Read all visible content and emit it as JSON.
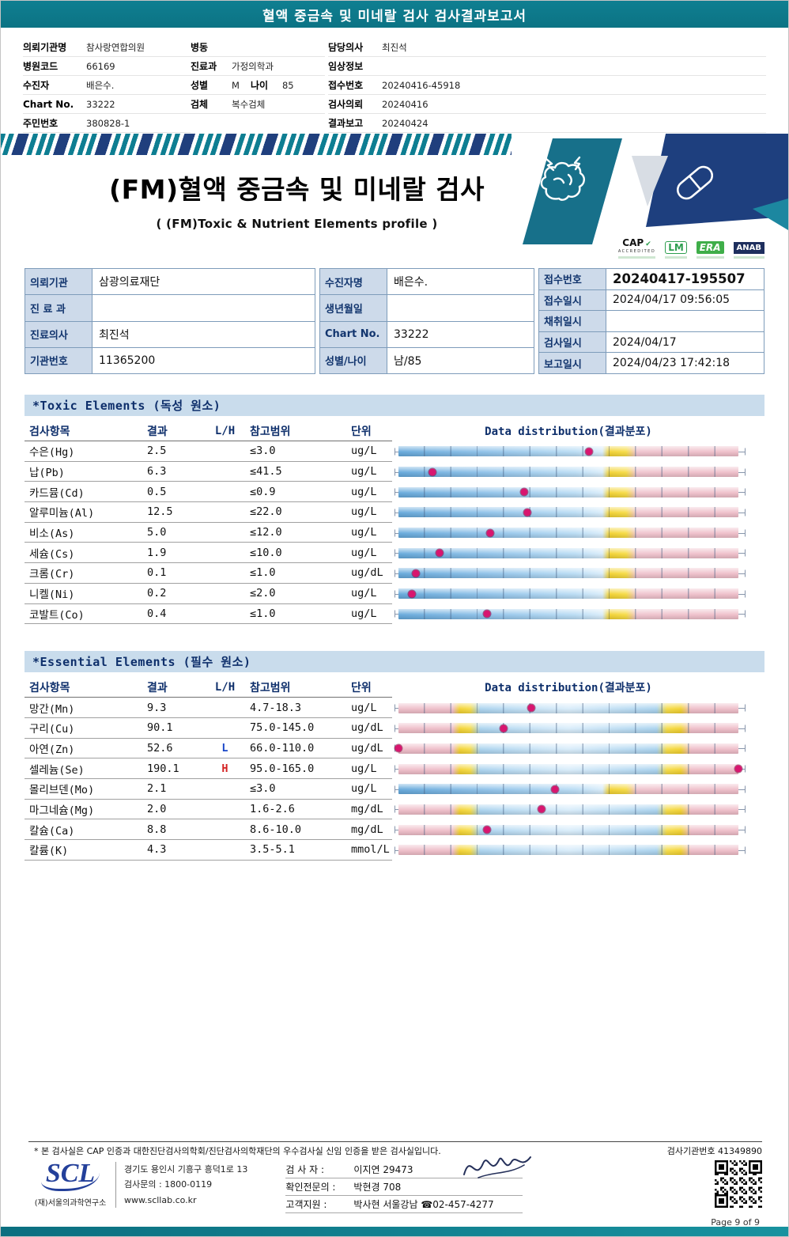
{
  "banner": {
    "title": "혈액 중금속 및 미네랄 검사 검사결과보고서"
  },
  "patient_header": {
    "col1": [
      {
        "label": "의뢰기관명",
        "value": "참사랑연합의원"
      },
      {
        "label": "병원코드",
        "value": "66169"
      },
      {
        "label": "수진자",
        "value": "배은수."
      },
      {
        "label": "Chart No.",
        "value": "33222"
      },
      {
        "label": "주민번호",
        "value": "380828-1"
      }
    ],
    "col2": [
      {
        "label": "병동",
        "value": ""
      },
      {
        "label": "진료과",
        "value": "가정의학과"
      },
      {
        "label": "성별",
        "value": "M",
        "label2": "나이",
        "value2": "85"
      },
      {
        "label": "검체",
        "value": "복수검체"
      }
    ],
    "col3": [
      {
        "label": "담당의사",
        "value": "최진석"
      },
      {
        "label": "임상정보",
        "value": ""
      },
      {
        "label": "접수번호",
        "value": "20240416-45918"
      },
      {
        "label": "검사의뢰",
        "value": "20240416"
      },
      {
        "label": "결과보고",
        "value": "20240424"
      }
    ]
  },
  "hero": {
    "title": "(FM)혈액 중금속 및 미네랄 검사",
    "subtitle": "( (FM)Toxic & Nutrient Elements profile )",
    "certifications": [
      {
        "name": "CAP",
        "caption": "ACCREDITED"
      },
      {
        "name": "LM",
        "caption": ""
      },
      {
        "name": "ERA",
        "caption": ""
      },
      {
        "name": "ANAB",
        "caption": ""
      }
    ]
  },
  "info_table": {
    "group_a": [
      {
        "label": "의뢰기관",
        "value": "삼광의료재단"
      },
      {
        "label": "진 료 과",
        "value": ""
      },
      {
        "label": "진료의사",
        "value": "최진석"
      },
      {
        "label": "기관번호",
        "value": "11365200"
      }
    ],
    "group_b": [
      {
        "label": "수진자명",
        "value": "배은수."
      },
      {
        "label": "생년월일",
        "value": ""
      },
      {
        "label": "Chart No.",
        "value": "33222"
      },
      {
        "label": "성별/나이",
        "value": "남/85"
      }
    ],
    "group_c": [
      {
        "label": "접수번호",
        "value": "20240417-195507",
        "emphasis": true
      },
      {
        "label": "접수일시",
        "value": "2024/04/17 09:56:05"
      },
      {
        "label": "채취일시",
        "value": ""
      },
      {
        "label": "검사일시",
        "value": "2024/04/17"
      },
      {
        "label": "보고일시",
        "value": "2024/04/23 17:42:18"
      }
    ]
  },
  "columns": [
    "검사항목",
    "결과",
    "L/H",
    "참고범위",
    "단위",
    "Data distribution(결과분포)"
  ],
  "toxic_section": {
    "title": "*Toxic Elements (독성 원소)",
    "rows": [
      {
        "name": "수은(Hg)",
        "result": "2.5",
        "lh": "",
        "range": "≤3.0",
        "unit": "ug/L",
        "bar": "upper",
        "pos": 56
      },
      {
        "name": "납(Pb)",
        "result": "6.3",
        "lh": "",
        "range": "≤41.5",
        "unit": "ug/L",
        "bar": "upper",
        "pos": 10
      },
      {
        "name": "카드뮴(Cd)",
        "result": "0.5",
        "lh": "",
        "range": "≤0.9",
        "unit": "ug/L",
        "bar": "upper",
        "pos": 37
      },
      {
        "name": "알루미늄(Al)",
        "result": "12.5",
        "lh": "",
        "range": "≤22.0",
        "unit": "ug/L",
        "bar": "upper",
        "pos": 38
      },
      {
        "name": "비소(As)",
        "result": "5.0",
        "lh": "",
        "range": "≤12.0",
        "unit": "ug/L",
        "bar": "upper",
        "pos": 27
      },
      {
        "name": "세슘(Cs)",
        "result": "1.9",
        "lh": "",
        "range": "≤10.0",
        "unit": "ug/L",
        "bar": "upper",
        "pos": 12
      },
      {
        "name": "크롬(Cr)",
        "result": "0.1",
        "lh": "",
        "range": "≤1.0",
        "unit": "ug/dL",
        "bar": "upper",
        "pos": 5
      },
      {
        "name": "니켈(Ni)",
        "result": "0.2",
        "lh": "",
        "range": "≤2.0",
        "unit": "ug/L",
        "bar": "upper",
        "pos": 4
      },
      {
        "name": "코발트(Co)",
        "result": "0.4",
        "lh": "",
        "range": "≤1.0",
        "unit": "ug/L",
        "bar": "upper",
        "pos": 26
      }
    ]
  },
  "essential_section": {
    "title": "*Essential Elements (필수 원소)",
    "rows": [
      {
        "name": "망간(Mn)",
        "result": "9.3",
        "lh": "",
        "range": "4.7-18.3",
        "unit": "ug/L",
        "bar": "range",
        "pos": 39
      },
      {
        "name": "구리(Cu)",
        "result": "90.1",
        "lh": "",
        "range": "75.0-145.0",
        "unit": "ug/dL",
        "bar": "range",
        "pos": 31
      },
      {
        "name": "아연(Zn)",
        "result": "52.6",
        "lh": "L",
        "range": "66.0-110.0",
        "unit": "ug/dL",
        "bar": "range",
        "pos": 0
      },
      {
        "name": "셀레늄(Se)",
        "result": "190.1",
        "lh": "H",
        "range": "95.0-165.0",
        "unit": "ug/L",
        "bar": "range",
        "pos": 100
      },
      {
        "name": "몰리브덴(Mo)",
        "result": "2.1",
        "lh": "",
        "range": "≤3.0",
        "unit": "ug/L",
        "bar": "upper",
        "pos": 46
      },
      {
        "name": "마그네슘(Mg)",
        "result": "2.0",
        "lh": "",
        "range": "1.6-2.6",
        "unit": "mg/dL",
        "bar": "range",
        "pos": 42
      },
      {
        "name": "칼슘(Ca)",
        "result": "8.8",
        "lh": "",
        "range": "8.6-10.0",
        "unit": "mg/dL",
        "bar": "range",
        "pos": 26
      },
      {
        "name": "칼륨(K)",
        "result": "4.3",
        "lh": "",
        "range": "3.5-5.1",
        "unit": "mmol/L",
        "bar": "range",
        "pos": null
      }
    ]
  },
  "footer": {
    "note": "* 본 검사실은 CAP 인증과 대한진단검사의학회/진단검사의학재단의 우수검사실 신임 인증을 받은 검사실입니다.",
    "lab_no": "검사기관번호 41349890",
    "logo": "SCL",
    "org": "(재)서울의과학연구소",
    "address": "경기도 용인시 기흥구 흥덕1로 13",
    "contact": "검사문의 : 1800-0119",
    "web": "www.scllab.co.kr",
    "staff": [
      {
        "label": "검 사 자 :",
        "value": "이지연 29473"
      },
      {
        "label": "확인전문의 :",
        "value": "박현경 708"
      },
      {
        "label": "고객지원 :",
        "value": "박사현 서울강남 ☎02-457-4277"
      }
    ],
    "page": "Page 9 of 9"
  }
}
